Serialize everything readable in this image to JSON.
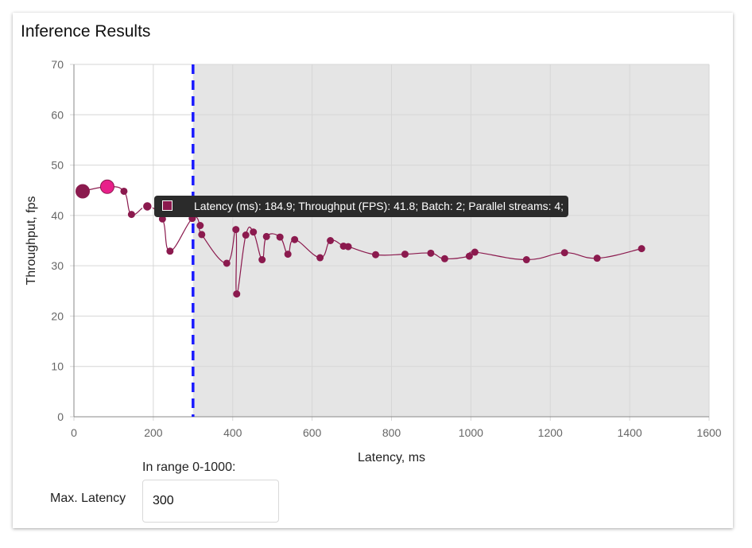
{
  "card": {
    "title": "Inference Results"
  },
  "controls": {
    "hint": "In range 0-1000:",
    "max_latency_label": "Max. Latency",
    "max_latency_value": "300"
  },
  "tooltip": {
    "text": "Latency (ms): 184.9;   Throughput (FPS): 41.8;   Batch: 2;   Parallel streams: 4;"
  },
  "colors": {
    "series": "#8b1a4e",
    "highlight": "#e8208a",
    "threshold": "#1a1aff",
    "out_of_range_fill": "#e5e5e5"
  },
  "chart_data": {
    "type": "scatter",
    "title": "Inference Results",
    "xlabel": "Latency, ms",
    "ylabel": "Throughput, fps",
    "xlim": [
      0,
      1600
    ],
    "ylim": [
      0,
      70
    ],
    "xticks": [
      0,
      200,
      400,
      600,
      800,
      1000,
      1200,
      1400,
      1600
    ],
    "yticks": [
      0,
      10,
      20,
      30,
      40,
      50,
      60,
      70
    ],
    "grid": true,
    "threshold_x": 300,
    "shaded_region_x": [
      300,
      1600
    ],
    "series": [
      {
        "points": [
          {
            "x": 22,
            "y": 44.8
          },
          {
            "x": 84,
            "y": 45.7
          },
          {
            "x": 126,
            "y": 44.8
          },
          {
            "x": 145,
            "y": 40.2
          },
          {
            "x": 184.9,
            "y": 41.8
          },
          {
            "x": 223,
            "y": 39.3
          },
          {
            "x": 242,
            "y": 32.9
          },
          {
            "x": 298,
            "y": 39.4
          },
          {
            "x": 318,
            "y": 38.0
          },
          {
            "x": 322,
            "y": 36.2
          },
          {
            "x": 385,
            "y": 30.5
          },
          {
            "x": 408,
            "y": 37.2
          },
          {
            "x": 410,
            "y": 24.4
          },
          {
            "x": 433,
            "y": 36.1
          },
          {
            "x": 452,
            "y": 36.7
          },
          {
            "x": 474,
            "y": 31.2
          },
          {
            "x": 485,
            "y": 35.8
          },
          {
            "x": 519,
            "y": 35.7
          },
          {
            "x": 539,
            "y": 32.3
          },
          {
            "x": 556,
            "y": 35.2
          },
          {
            "x": 620,
            "y": 31.6
          },
          {
            "x": 646,
            "y": 35.0
          },
          {
            "x": 679,
            "y": 33.9
          },
          {
            "x": 691,
            "y": 33.8
          },
          {
            "x": 760,
            "y": 32.2
          },
          {
            "x": 834,
            "y": 32.3
          },
          {
            "x": 899,
            "y": 32.5
          },
          {
            "x": 934,
            "y": 31.4
          },
          {
            "x": 996,
            "y": 31.9
          },
          {
            "x": 1010,
            "y": 32.7
          },
          {
            "x": 1140,
            "y": 31.2
          },
          {
            "x": 1236,
            "y": 32.6
          },
          {
            "x": 1318,
            "y": 31.5
          },
          {
            "x": 1430,
            "y": 33.4
          }
        ],
        "highlighted": [
          {
            "x": 22,
            "y": 44.8,
            "color": "#8b1a4e"
          },
          {
            "x": 84,
            "y": 45.7,
            "color": "#e8208a"
          }
        ],
        "selected": {
          "x": 184.9,
          "y": 41.8
        }
      }
    ]
  }
}
